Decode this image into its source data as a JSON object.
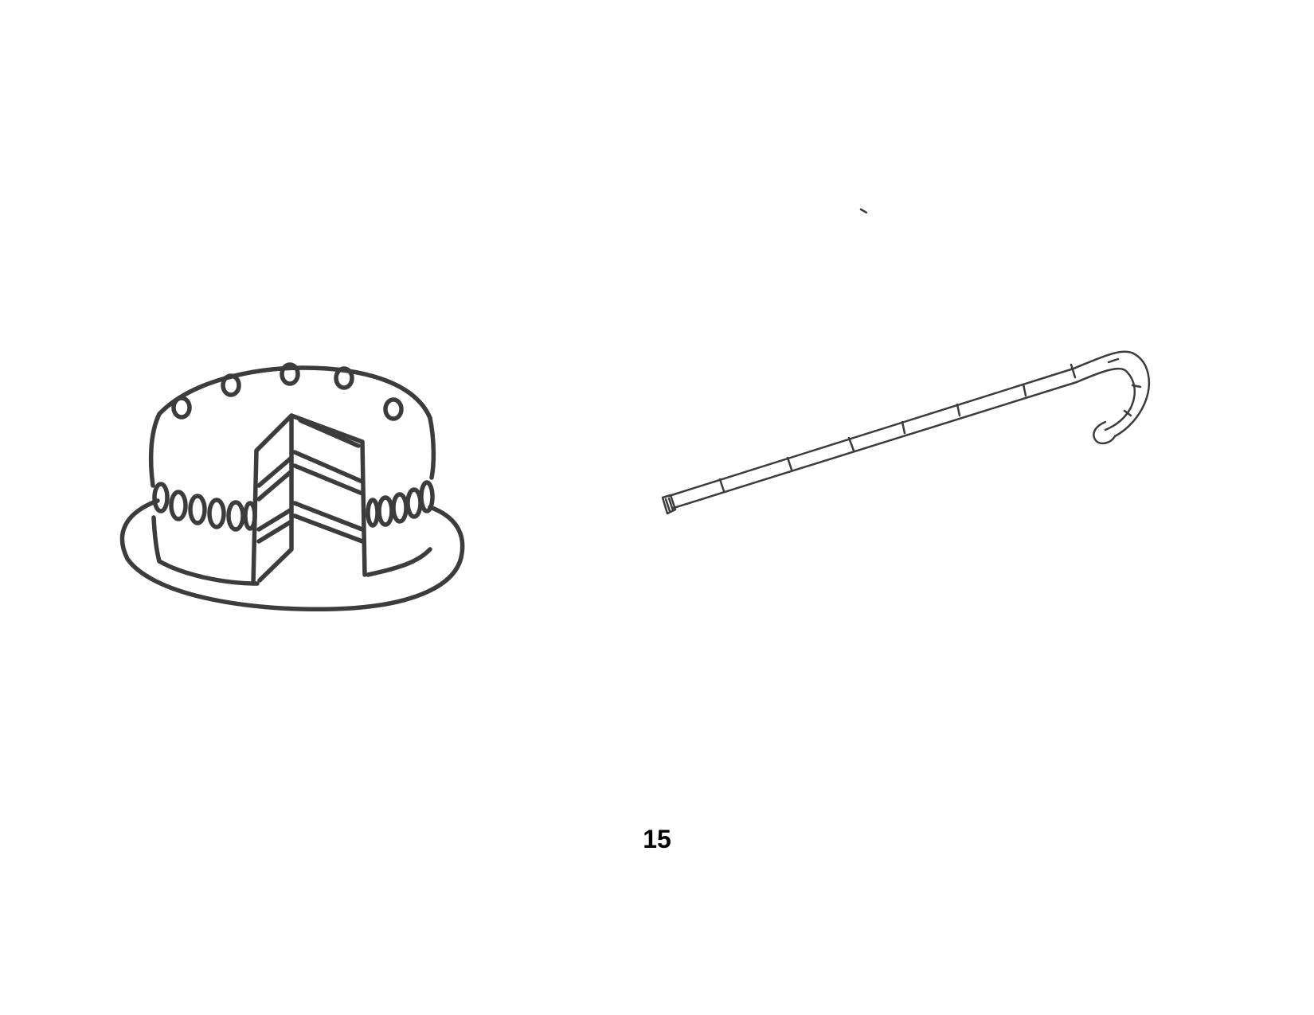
{
  "page": {
    "number": "15"
  },
  "drawings": [
    {
      "icon": "cake-icon"
    },
    {
      "icon": "cane-icon"
    }
  ],
  "colors": {
    "ink": "#3c3c3c",
    "text": "#000000",
    "background": "#ffffff"
  }
}
